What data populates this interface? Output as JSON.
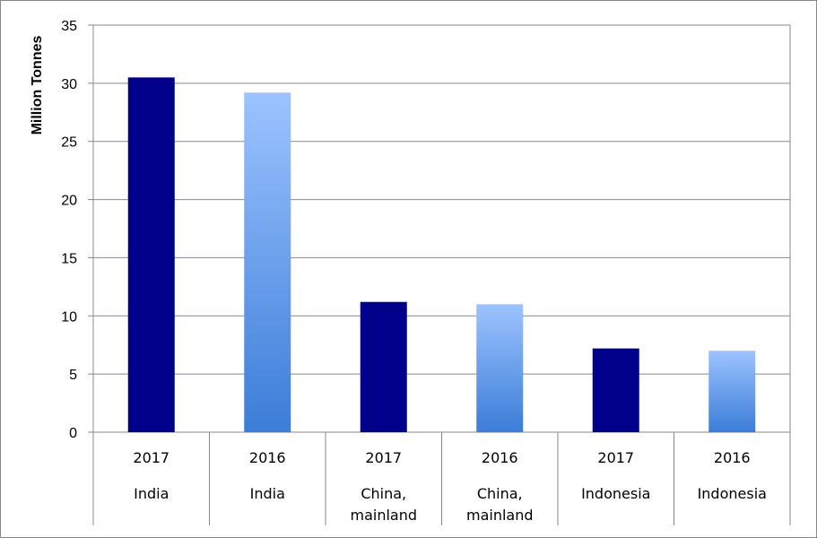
{
  "chart_data": {
    "type": "bar",
    "title": "",
    "xlabel": "",
    "ylabel": "Million Tonnes",
    "ylim": [
      0,
      35
    ],
    "yticks": [
      0,
      5,
      10,
      15,
      20,
      25,
      30,
      35
    ],
    "grid": true,
    "legend": "none",
    "categories": [
      {
        "year": "2017",
        "country": [
          "India"
        ]
      },
      {
        "year": "2016",
        "country": [
          "India"
        ]
      },
      {
        "year": "2017",
        "country": [
          "China,",
          "mainland"
        ]
      },
      {
        "year": "2016",
        "country": [
          "China,",
          "mainland"
        ]
      },
      {
        "year": "2017",
        "country": [
          "Indonesia"
        ]
      },
      {
        "year": "2016",
        "country": [
          "Indonesia"
        ]
      }
    ],
    "values": [
      30.5,
      29.2,
      11.2,
      11.0,
      7.2,
      7.0
    ],
    "colors": {
      "2017": "#00008B",
      "2016_top": "#9DC3FF",
      "2016_bottom": "#3B7DD8",
      "gridline": "#888888",
      "axis": "#888888"
    }
  }
}
